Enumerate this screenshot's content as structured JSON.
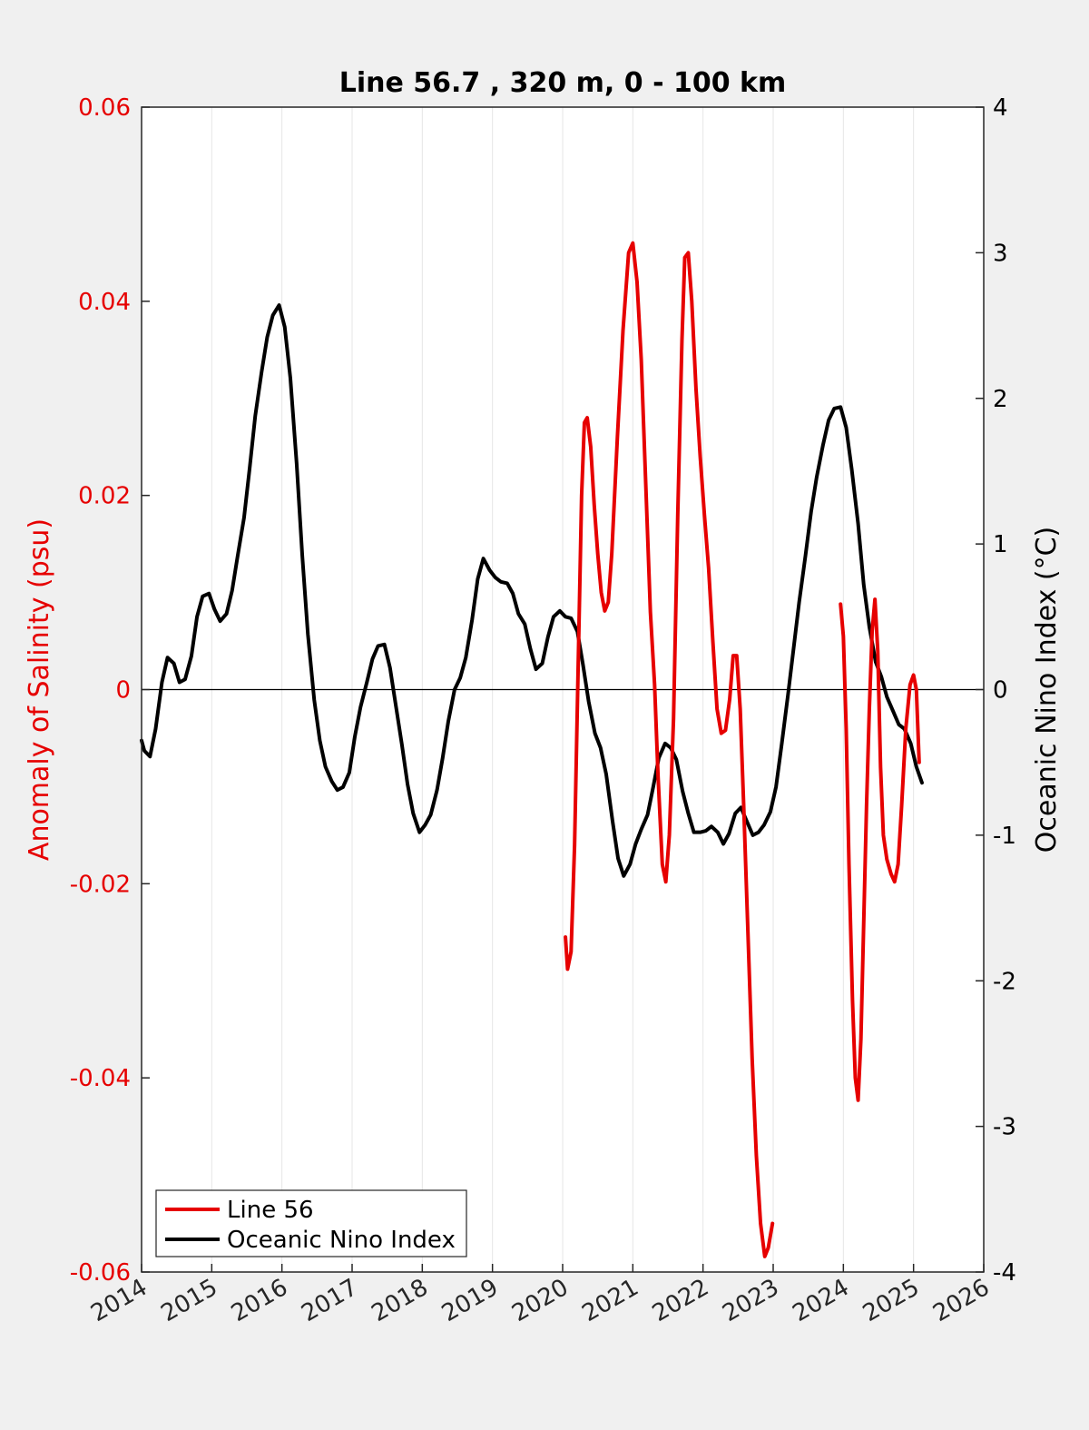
{
  "chart_data": {
    "type": "line",
    "title": "Line 56.7 , 320 m, 0 - 100 km",
    "xlim": [
      2014,
      2026
    ],
    "x_ticks": [
      "2014",
      "2015",
      "2016",
      "2017",
      "2018",
      "2019",
      "2020",
      "2021",
      "2022",
      "2023",
      "2024",
      "2025",
      "2026"
    ],
    "y_left": {
      "label": "Anomaly of Salinity (psu)",
      "lim": [
        -0.06,
        0.06
      ],
      "ticks": [
        "0.06",
        "0.04",
        "0.02",
        "0",
        "-0.02",
        "-0.04",
        "-0.06"
      ],
      "tick_values": [
        0.06,
        0.04,
        0.02,
        0,
        -0.02,
        -0.04,
        -0.06
      ]
    },
    "y_right": {
      "label": "Oceanic Nino Index (°C)",
      "lim": [
        -4,
        4
      ],
      "ticks": [
        "4",
        "3",
        "2",
        "1",
        "0",
        "-1",
        "-2",
        "-3",
        "-4"
      ],
      "tick_values": [
        4,
        3,
        2,
        1,
        0,
        -1,
        -2,
        -3,
        -4
      ]
    },
    "grid": "vertical",
    "zero_line": true,
    "legend_position": "bottom-left",
    "series": [
      {
        "name": "Line 56",
        "axis": "left",
        "color": "#e60000",
        "segments": [
          [
            [
              2020.04,
              -0.0255
            ],
            [
              2020.07,
              -0.0288
            ],
            [
              2020.12,
              -0.027
            ],
            [
              2020.17,
              -0.016
            ],
            [
              2020.22,
              0.002
            ],
            [
              2020.27,
              0.02
            ],
            [
              2020.31,
              0.0275
            ],
            [
              2020.35,
              0.028
            ],
            [
              2020.4,
              0.025
            ],
            [
              2020.45,
              0.019
            ],
            [
              2020.5,
              0.014
            ],
            [
              2020.55,
              0.01
            ],
            [
              2020.6,
              0.0081
            ],
            [
              2020.65,
              0.009
            ],
            [
              2020.7,
              0.014
            ],
            [
              2020.78,
              0.026
            ],
            [
              2020.86,
              0.037
            ],
            [
              2020.94,
              0.045
            ],
            [
              2021.0,
              0.046
            ],
            [
              2021.06,
              0.042
            ],
            [
              2021.12,
              0.034
            ],
            [
              2021.18,
              0.022
            ],
            [
              2021.25,
              0.008
            ],
            [
              2021.31,
              0.0005
            ],
            [
              2021.36,
              -0.009
            ],
            [
              2021.42,
              -0.018
            ],
            [
              2021.47,
              -0.0198
            ],
            [
              2021.52,
              -0.015
            ],
            [
              2021.58,
              -0.003
            ],
            [
              2021.64,
              0.018
            ],
            [
              2021.7,
              0.036
            ],
            [
              2021.74,
              0.0445
            ],
            [
              2021.79,
              0.045
            ],
            [
              2021.84,
              0.04
            ],
            [
              2021.9,
              0.031
            ],
            [
              2021.96,
              0.024
            ],
            [
              2022.02,
              0.018
            ],
            [
              2022.08,
              0.0125
            ],
            [
              2022.14,
              0.005
            ],
            [
              2022.2,
              -0.002
            ],
            [
              2022.26,
              -0.0045
            ],
            [
              2022.32,
              -0.0042
            ],
            [
              2022.38,
              -0.001
            ],
            [
              2022.43,
              0.0035
            ],
            [
              2022.48,
              0.0035
            ],
            [
              2022.53,
              -0.002
            ],
            [
              2022.58,
              -0.012
            ],
            [
              2022.64,
              -0.025
            ],
            [
              2022.7,
              -0.038
            ],
            [
              2022.76,
              -0.048
            ],
            [
              2022.82,
              -0.055
            ],
            [
              2022.88,
              -0.0584
            ],
            [
              2022.93,
              -0.0575
            ],
            [
              2022.99,
              -0.055
            ]
          ],
          [
            [
              2023.96,
              0.0088
            ],
            [
              2024.0,
              0.0055
            ],
            [
              2024.04,
              -0.004
            ],
            [
              2024.08,
              -0.018
            ],
            [
              2024.13,
              -0.032
            ],
            [
              2024.17,
              -0.04
            ],
            [
              2024.21,
              -0.0423
            ],
            [
              2024.25,
              -0.036
            ],
            [
              2024.29,
              -0.024
            ],
            [
              2024.33,
              -0.012
            ],
            [
              2024.37,
              -0.002
            ],
            [
              2024.41,
              0.006
            ],
            [
              2024.45,
              0.0093
            ],
            [
              2024.49,
              0.004
            ],
            [
              2024.53,
              -0.008
            ],
            [
              2024.57,
              -0.015
            ],
            [
              2024.62,
              -0.0175
            ],
            [
              2024.68,
              -0.019
            ],
            [
              2024.73,
              -0.0198
            ],
            [
              2024.78,
              -0.018
            ],
            [
              2024.83,
              -0.012
            ],
            [
              2024.89,
              -0.004
            ],
            [
              2024.95,
              0.0005
            ],
            [
              2025.0,
              0.0015
            ],
            [
              2025.04,
              0.0
            ],
            [
              2025.08,
              -0.0075
            ]
          ]
        ]
      },
      {
        "name": "Oceanic Nino Index",
        "axis": "right",
        "color": "#000000",
        "segments": [
          [
            [
              2014.0,
              -0.35
            ],
            [
              2014.04,
              -0.42
            ],
            [
              2014.12,
              -0.46
            ],
            [
              2014.2,
              -0.27
            ],
            [
              2014.29,
              0.05
            ],
            [
              2014.37,
              0.22
            ],
            [
              2014.46,
              0.18
            ],
            [
              2014.54,
              0.05
            ],
            [
              2014.62,
              0.07
            ],
            [
              2014.71,
              0.23
            ],
            [
              2014.79,
              0.5
            ],
            [
              2014.87,
              0.64
            ],
            [
              2014.96,
              0.66
            ],
            [
              2015.04,
              0.55
            ],
            [
              2015.12,
              0.47
            ],
            [
              2015.21,
              0.52
            ],
            [
              2015.29,
              0.68
            ],
            [
              2015.37,
              0.92
            ],
            [
              2015.46,
              1.18
            ],
            [
              2015.54,
              1.52
            ],
            [
              2015.62,
              1.88
            ],
            [
              2015.71,
              2.18
            ],
            [
              2015.79,
              2.42
            ],
            [
              2015.87,
              2.57
            ],
            [
              2015.96,
              2.64
            ],
            [
              2016.04,
              2.49
            ],
            [
              2016.12,
              2.14
            ],
            [
              2016.21,
              1.55
            ],
            [
              2016.29,
              0.92
            ],
            [
              2016.37,
              0.38
            ],
            [
              2016.46,
              -0.07
            ],
            [
              2016.54,
              -0.35
            ],
            [
              2016.62,
              -0.53
            ],
            [
              2016.71,
              -0.63
            ],
            [
              2016.79,
              -0.69
            ],
            [
              2016.87,
              -0.67
            ],
            [
              2016.96,
              -0.57
            ],
            [
              2017.04,
              -0.32
            ],
            [
              2017.12,
              -0.12
            ],
            [
              2017.21,
              0.05
            ],
            [
              2017.29,
              0.21
            ],
            [
              2017.37,
              0.3
            ],
            [
              2017.46,
              0.31
            ],
            [
              2017.54,
              0.15
            ],
            [
              2017.62,
              -0.1
            ],
            [
              2017.71,
              -0.38
            ],
            [
              2017.79,
              -0.65
            ],
            [
              2017.87,
              -0.85
            ],
            [
              2017.96,
              -0.98
            ],
            [
              2018.04,
              -0.93
            ],
            [
              2018.12,
              -0.86
            ],
            [
              2018.21,
              -0.69
            ],
            [
              2018.29,
              -0.47
            ],
            [
              2018.37,
              -0.22
            ],
            [
              2018.46,
              0.0
            ],
            [
              2018.54,
              0.08
            ],
            [
              2018.62,
              0.22
            ],
            [
              2018.71,
              0.48
            ],
            [
              2018.79,
              0.76
            ],
            [
              2018.87,
              0.9
            ],
            [
              2018.96,
              0.82
            ],
            [
              2019.04,
              0.77
            ],
            [
              2019.12,
              0.74
            ],
            [
              2019.21,
              0.73
            ],
            [
              2019.29,
              0.66
            ],
            [
              2019.37,
              0.52
            ],
            [
              2019.46,
              0.45
            ],
            [
              2019.54,
              0.28
            ],
            [
              2019.62,
              0.14
            ],
            [
              2019.71,
              0.18
            ],
            [
              2019.79,
              0.36
            ],
            [
              2019.87,
              0.5
            ],
            [
              2019.96,
              0.54
            ],
            [
              2020.04,
              0.5
            ],
            [
              2020.12,
              0.49
            ],
            [
              2020.21,
              0.4
            ],
            [
              2020.29,
              0.17
            ],
            [
              2020.37,
              -0.08
            ],
            [
              2020.46,
              -0.3
            ],
            [
              2020.54,
              -0.4
            ],
            [
              2020.62,
              -0.58
            ],
            [
              2020.71,
              -0.9
            ],
            [
              2020.79,
              -1.16
            ],
            [
              2020.87,
              -1.28
            ],
            [
              2020.96,
              -1.2
            ],
            [
              2021.04,
              -1.06
            ],
            [
              2021.12,
              -0.96
            ],
            [
              2021.21,
              -0.86
            ],
            [
              2021.29,
              -0.67
            ],
            [
              2021.37,
              -0.47
            ],
            [
              2021.46,
              -0.37
            ],
            [
              2021.54,
              -0.4
            ],
            [
              2021.62,
              -0.48
            ],
            [
              2021.71,
              -0.7
            ],
            [
              2021.79,
              -0.85
            ],
            [
              2021.87,
              -0.98
            ],
            [
              2021.96,
              -0.98
            ],
            [
              2022.04,
              -0.97
            ],
            [
              2022.12,
              -0.94
            ],
            [
              2022.21,
              -0.98
            ],
            [
              2022.29,
              -1.06
            ],
            [
              2022.37,
              -0.99
            ],
            [
              2022.46,
              -0.85
            ],
            [
              2022.54,
              -0.81
            ],
            [
              2022.62,
              -0.9
            ],
            [
              2022.71,
              -1.0
            ],
            [
              2022.79,
              -0.98
            ],
            [
              2022.87,
              -0.93
            ],
            [
              2022.96,
              -0.84
            ],
            [
              2023.04,
              -0.67
            ],
            [
              2023.12,
              -0.38
            ],
            [
              2023.21,
              -0.04
            ],
            [
              2023.29,
              0.28
            ],
            [
              2023.37,
              0.6
            ],
            [
              2023.46,
              0.92
            ],
            [
              2023.54,
              1.22
            ],
            [
              2023.62,
              1.46
            ],
            [
              2023.71,
              1.68
            ],
            [
              2023.79,
              1.85
            ],
            [
              2023.87,
              1.93
            ],
            [
              2023.96,
              1.94
            ],
            [
              2024.04,
              1.8
            ],
            [
              2024.12,
              1.51
            ],
            [
              2024.21,
              1.14
            ],
            [
              2024.29,
              0.72
            ],
            [
              2024.37,
              0.43
            ],
            [
              2024.46,
              0.19
            ],
            [
              2024.54,
              0.09
            ],
            [
              2024.62,
              -0.05
            ],
            [
              2024.71,
              -0.15
            ],
            [
              2024.79,
              -0.24
            ],
            [
              2024.87,
              -0.27
            ],
            [
              2024.96,
              -0.37
            ],
            [
              2025.04,
              -0.53
            ],
            [
              2025.12,
              -0.64
            ]
          ]
        ]
      }
    ]
  }
}
